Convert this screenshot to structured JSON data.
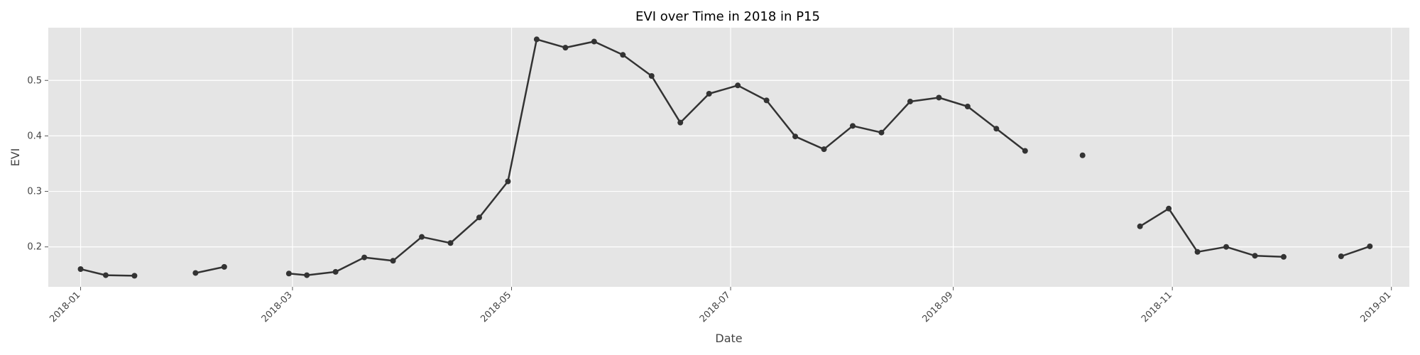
{
  "chart_data": {
    "type": "line",
    "title": "EVI over Time in 2018 in P15",
    "xlabel": "Date",
    "ylabel": "EVI",
    "xlim": [
      "2017-12-23",
      "2019-01-06"
    ],
    "ylim": [
      0.128,
      0.595
    ],
    "x_ticks": [
      "2018-01",
      "2018-03",
      "2018-05",
      "2018-07",
      "2018-09",
      "2018-11",
      "2019-01"
    ],
    "y_ticks": [
      0.2,
      0.3,
      0.4,
      0.5
    ],
    "grid": true,
    "line_color": "#333333",
    "background_color": "#e5e5e5",
    "points": [
      {
        "date": "2018-01-01",
        "value": 0.16
      },
      {
        "date": "2018-01-08",
        "value": 0.149
      },
      {
        "date": "2018-01-16",
        "value": 0.148
      },
      {
        "date": null,
        "value": null
      },
      {
        "date": "2018-02-02",
        "value": 0.153
      },
      {
        "date": "2018-02-10",
        "value": 0.164
      },
      {
        "date": null,
        "value": null
      },
      {
        "date": "2018-02-28",
        "value": 0.152
      },
      {
        "date": "2018-03-05",
        "value": 0.149
      },
      {
        "date": "2018-03-13",
        "value": 0.155
      },
      {
        "date": "2018-03-21",
        "value": 0.181
      },
      {
        "date": "2018-03-29",
        "value": 0.175
      },
      {
        "date": "2018-04-06",
        "value": 0.218
      },
      {
        "date": "2018-04-14",
        "value": 0.207
      },
      {
        "date": "2018-04-22",
        "value": 0.253
      },
      {
        "date": "2018-04-30",
        "value": 0.318
      },
      {
        "date": "2018-05-08",
        "value": 0.574
      },
      {
        "date": "2018-05-16",
        "value": 0.559
      },
      {
        "date": "2018-05-24",
        "value": 0.57
      },
      {
        "date": "2018-06-01",
        "value": 0.546
      },
      {
        "date": "2018-06-09",
        "value": 0.508
      },
      {
        "date": "2018-06-17",
        "value": 0.424
      },
      {
        "date": "2018-06-25",
        "value": 0.476
      },
      {
        "date": "2018-07-03",
        "value": 0.491
      },
      {
        "date": "2018-07-11",
        "value": 0.464
      },
      {
        "date": "2018-07-19",
        "value": 0.399
      },
      {
        "date": "2018-07-27",
        "value": 0.376
      },
      {
        "date": "2018-08-04",
        "value": 0.418
      },
      {
        "date": "2018-08-12",
        "value": 0.406
      },
      {
        "date": "2018-08-20",
        "value": 0.462
      },
      {
        "date": "2018-08-28",
        "value": 0.469
      },
      {
        "date": "2018-09-05",
        "value": 0.453
      },
      {
        "date": "2018-09-13",
        "value": 0.413
      },
      {
        "date": "2018-09-21",
        "value": 0.373
      },
      {
        "date": null,
        "value": null
      },
      {
        "date": "2018-10-07",
        "value": 0.365
      },
      {
        "date": null,
        "value": null
      },
      {
        "date": "2018-10-23",
        "value": 0.237
      },
      {
        "date": "2018-10-31",
        "value": 0.269
      },
      {
        "date": "2018-11-08",
        "value": 0.191
      },
      {
        "date": "2018-11-16",
        "value": 0.2
      },
      {
        "date": "2018-11-24",
        "value": 0.184
      },
      {
        "date": "2018-12-02",
        "value": 0.182
      },
      {
        "date": null,
        "value": null
      },
      {
        "date": "2018-12-18",
        "value": 0.183
      },
      {
        "date": "2018-12-26",
        "value": 0.201
      }
    ]
  }
}
